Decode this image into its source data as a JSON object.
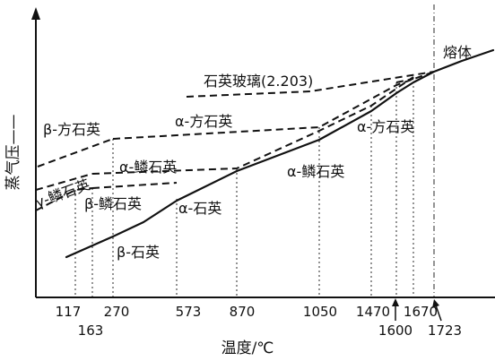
{
  "diagram": {
    "y_axis_label": "蒸气压——",
    "x_axis_label": "温度/℃",
    "x_ticks": [
      "117",
      "163",
      "270",
      "573",
      "870",
      "1050",
      "1470",
      "1600",
      "1670",
      "1723"
    ],
    "phase_labels": {
      "melt": "熔体",
      "quartz_glass": "石英玻璃(2.203)",
      "beta_cristobalite": "β-方石英",
      "alpha_cristobalite_upper": "α-方石英",
      "alpha_cristobalite_right": "α-方石英",
      "gamma_tridymite": "γ-鳞石英",
      "alpha_tridymite_left": "α-鳞石英",
      "beta_tridymite": "β-鳞石英",
      "alpha_tridymite_right": "α-鳞石英",
      "alpha_quartz": "α-石英",
      "beta_quartz": "β-石英"
    }
  }
}
